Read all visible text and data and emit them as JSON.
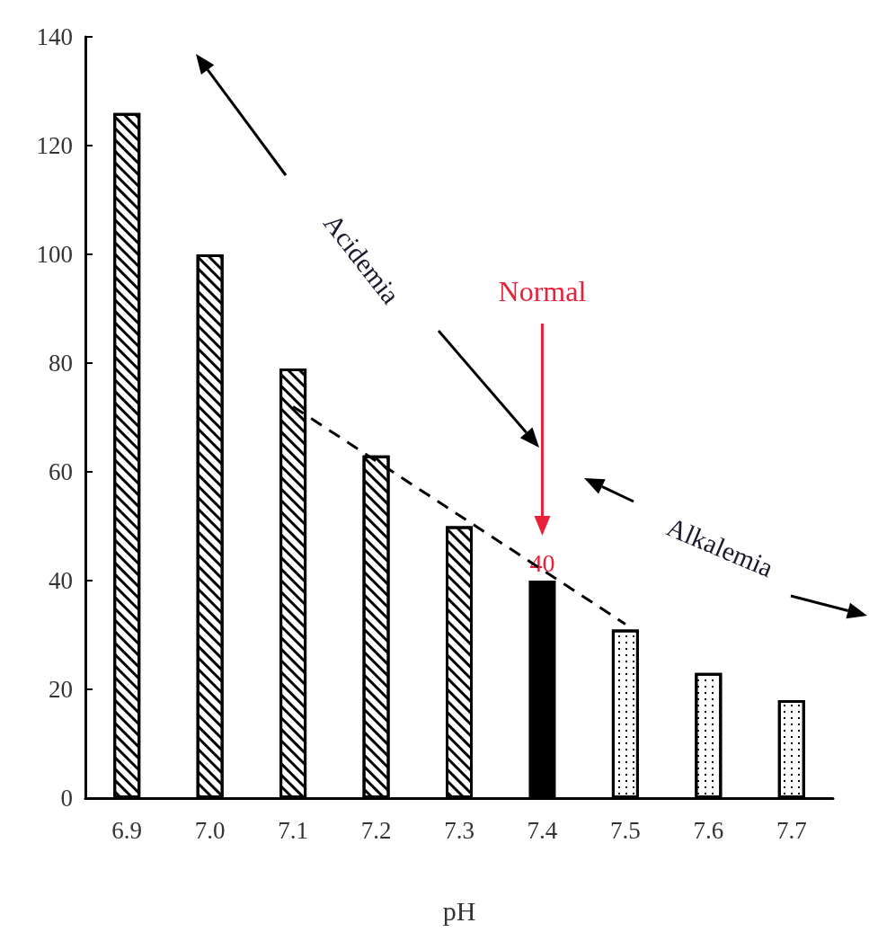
{
  "chart_data": {
    "type": "bar",
    "xlabel": "pH",
    "categories": [
      "6.9",
      "7.0",
      "7.1",
      "7.2",
      "7.3",
      "7.4",
      "7.5",
      "7.6",
      "7.7"
    ],
    "series": [
      {
        "values": [
          126,
          100,
          79,
          63,
          50,
          40,
          31,
          23,
          18
        ],
        "colors": [
          "#ffffff",
          "#ffffff",
          "#ffffff",
          "#ffffff",
          "#ffffff",
          "#000000",
          "#ffffff",
          "#ffffff",
          "#ffffff"
        ],
        "value_labels": [
          null,
          null,
          null,
          null,
          null,
          "40",
          null,
          null,
          null
        ]
      },
      {
        "type": "line",
        "x": [
          "7.1",
          "7.5"
        ],
        "values": [
          72,
          32
        ],
        "color": "#000000",
        "line_style": "dashed",
        "marker": "none"
      }
    ],
    "ylim": [
      0,
      140
    ],
    "yticks": [
      0,
      20,
      40,
      60,
      80,
      100,
      120,
      140
    ],
    "grid": false,
    "annotations": [
      "Normal",
      "Acidemia",
      "Alkalemia"
    ]
  }
}
